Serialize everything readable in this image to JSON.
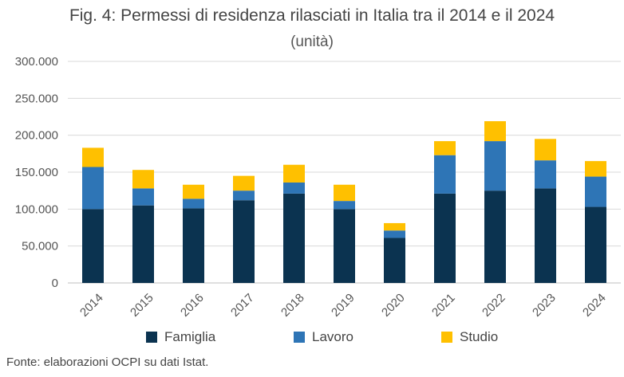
{
  "chart_data": {
    "type": "bar",
    "stacked": true,
    "title": "Fig. 4: Permessi di residenza rilasciati in Italia tra il 2014 e il 2024",
    "subtitle": "(unità)",
    "categories": [
      "2014",
      "2015",
      "2016",
      "2017",
      "2018",
      "2019",
      "2020",
      "2021",
      "2022",
      "2023",
      "2024"
    ],
    "series": [
      {
        "name": "Famiglia",
        "color": "#0b3350",
        "values": [
          100000,
          105000,
          101000,
          112000,
          121000,
          100000,
          61000,
          121000,
          125000,
          128000,
          103000
        ]
      },
      {
        "name": "Lavoro",
        "color": "#2e75b6",
        "values": [
          57000,
          23000,
          13000,
          13000,
          15000,
          11000,
          10000,
          52000,
          67000,
          38000,
          41000
        ]
      },
      {
        "name": "Studio",
        "color": "#ffc000",
        "values": [
          26000,
          25000,
          19000,
          20000,
          24000,
          22000,
          10000,
          19000,
          27000,
          29000,
          21000
        ]
      }
    ],
    "ylim": [
      0,
      300000
    ],
    "yticks": [
      "0",
      "50.000",
      "100.000",
      "150.000",
      "200.000",
      "250.000",
      "300.000"
    ],
    "ytick_values": [
      0,
      50000,
      100000,
      150000,
      200000,
      250000,
      300000
    ],
    "grid": true,
    "legend": "bottom",
    "source": "Fonte: elaborazioni OCPI su dati Istat."
  }
}
